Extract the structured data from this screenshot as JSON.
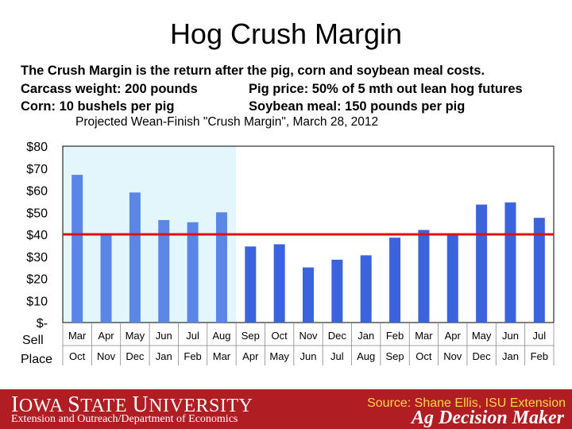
{
  "slide": {
    "title": "Hog Crush Margin",
    "desc_line1": "The Crush Margin is the return after the pig, corn and soybean meal costs.",
    "desc_line2a": "Carcass weight:  200 pounds",
    "desc_line2b": "Pig price:  50% of 5 mth out lean hog futures",
    "desc_line3a": "Corn:  10 bushels per pig",
    "desc_line3b": "Soybean meal:  150 pounds per pig"
  },
  "footer": {
    "isu_logo": "Iowa State University",
    "extension": "Extension and Outreach/Department of Economics",
    "source": "Source: Shane Ellis, ISU Extension",
    "ag_decision_maker": "Ag Decision Maker"
  },
  "colors": {
    "bar": "#3b63dd",
    "bar_historical": "#5b86e8",
    "highlight": "#e2f6fc",
    "reference_line": "#e01010",
    "footer": "#b01e23",
    "source_text": "#ffd54a"
  },
  "chart_data": {
    "type": "bar",
    "title": "Projected Wean-Finish \"Crush Margin\", March 28, 2012",
    "categories_row1_label": "Sell",
    "categories_row2_label": "Place",
    "sell_months": [
      "Mar",
      "Apr",
      "May",
      "Jun",
      "Jul",
      "Aug",
      "Sep",
      "Oct",
      "Nov",
      "Dec",
      "Jan",
      "Feb",
      "Mar",
      "Apr",
      "May",
      "Jun",
      "Jul"
    ],
    "place_months": [
      "Oct",
      "Nov",
      "Dec",
      "Jan",
      "Feb",
      "Mar",
      "Apr",
      "May",
      "Jun",
      "Jul",
      "Aug",
      "Sep",
      "Oct",
      "Nov",
      "Dec",
      "Jan",
      "Feb"
    ],
    "values": [
      67,
      40,
      59,
      46.5,
      45.5,
      50,
      34.5,
      35.5,
      25,
      28.5,
      30.5,
      38.5,
      42,
      40,
      53.5,
      54.5,
      47.5
    ],
    "historical_count": 6,
    "reference_line": 40,
    "y_ticks": [
      "$-",
      "$10",
      "$20",
      "$30",
      "$40",
      "$50",
      "$60",
      "$70",
      "$80"
    ],
    "ylim": [
      0,
      80
    ],
    "grid": false,
    "legend": "none"
  }
}
